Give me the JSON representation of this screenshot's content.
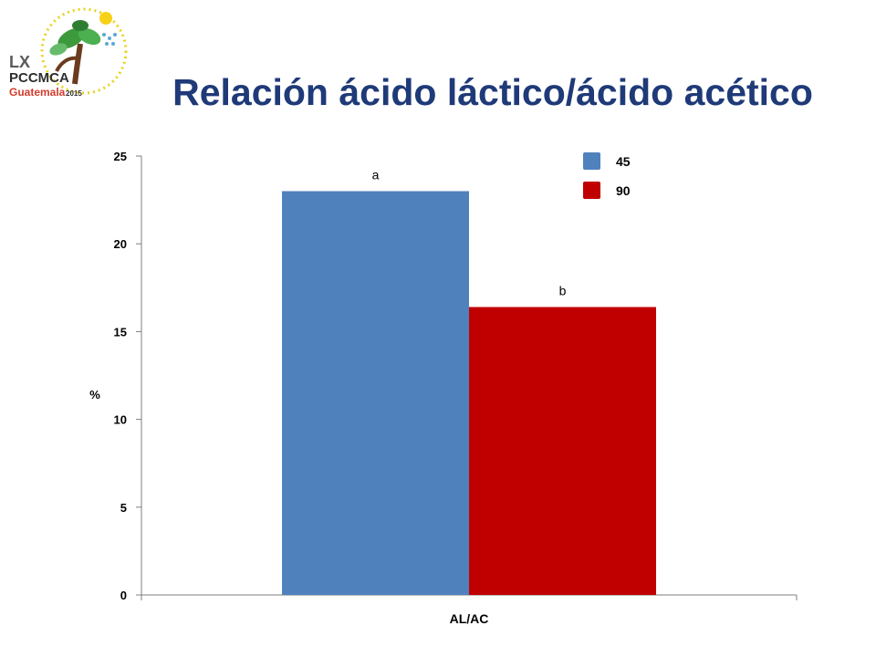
{
  "slide": {
    "title": "Relación ácido láctico/ácido acético"
  },
  "logo": {
    "line1": "LX",
    "line2": "PCCMCA",
    "line3": "Guatemala",
    "year": "2015"
  },
  "chart_data": {
    "type": "bar",
    "categories": [
      "AL/AC"
    ],
    "series": [
      {
        "name": "45",
        "values": [
          23.0
        ],
        "color": "#4f81bd",
        "label": "a"
      },
      {
        "name": "90",
        "values": [
          16.4
        ],
        "color": "#c00000",
        "label": "b"
      }
    ],
    "ylabel": "%",
    "xlabel": "",
    "ylim": [
      0,
      25
    ],
    "yticks": [
      0,
      5,
      10,
      15,
      20,
      25
    ],
    "grid": false,
    "legend_position": "top-right"
  }
}
